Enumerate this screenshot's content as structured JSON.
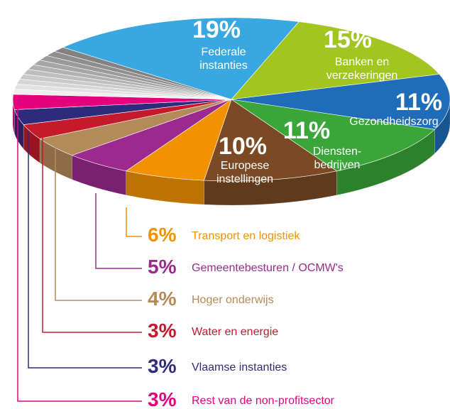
{
  "chart_data": {
    "type": "pie",
    "categories": [
      "Federale\ninstanties",
      "Banken en\nverzekeringen",
      "Gezondheidszorg",
      "Diensten-\nbedrijven",
      "Europese\ninstellingen",
      "Transport en logistiek",
      "Gemeentebesturen / OCMW's",
      "Hoger onderwijs",
      "Water en energie",
      "Vlaamse instanties",
      "Rest van de non-profitsector",
      null,
      null,
      null,
      null,
      null,
      null,
      null,
      null,
      null,
      null
    ],
    "values": [
      19,
      15,
      11,
      11,
      10,
      6,
      5,
      4,
      3,
      3,
      3,
      1,
      1,
      1,
      1,
      1,
      1,
      1,
      1,
      1,
      1
    ],
    "value_labels": [
      "19%",
      "15%",
      "11%",
      "11%",
      "10%",
      "6%",
      "5%",
      "4%",
      "3%",
      "3%",
      "3%",
      null,
      null,
      null,
      null,
      null,
      null,
      null,
      null,
      null,
      null
    ],
    "colors": [
      "#3aa8e0",
      "#a2c51f",
      "#1f6db8",
      "#3aa63a",
      "#7b4a25",
      "#f39200",
      "#9b2a8f",
      "#b58a5a",
      "#c41a2c",
      "#2e2b7c",
      "#e5007e",
      "#eeeeee",
      "#e2e2e2",
      "#d6d6d6",
      "#cacaca",
      "#bebebe",
      "#b2b2b2",
      "#a6a6a6",
      "#9a9a9a",
      "#8e8e8e",
      "#828282"
    ]
  }
}
